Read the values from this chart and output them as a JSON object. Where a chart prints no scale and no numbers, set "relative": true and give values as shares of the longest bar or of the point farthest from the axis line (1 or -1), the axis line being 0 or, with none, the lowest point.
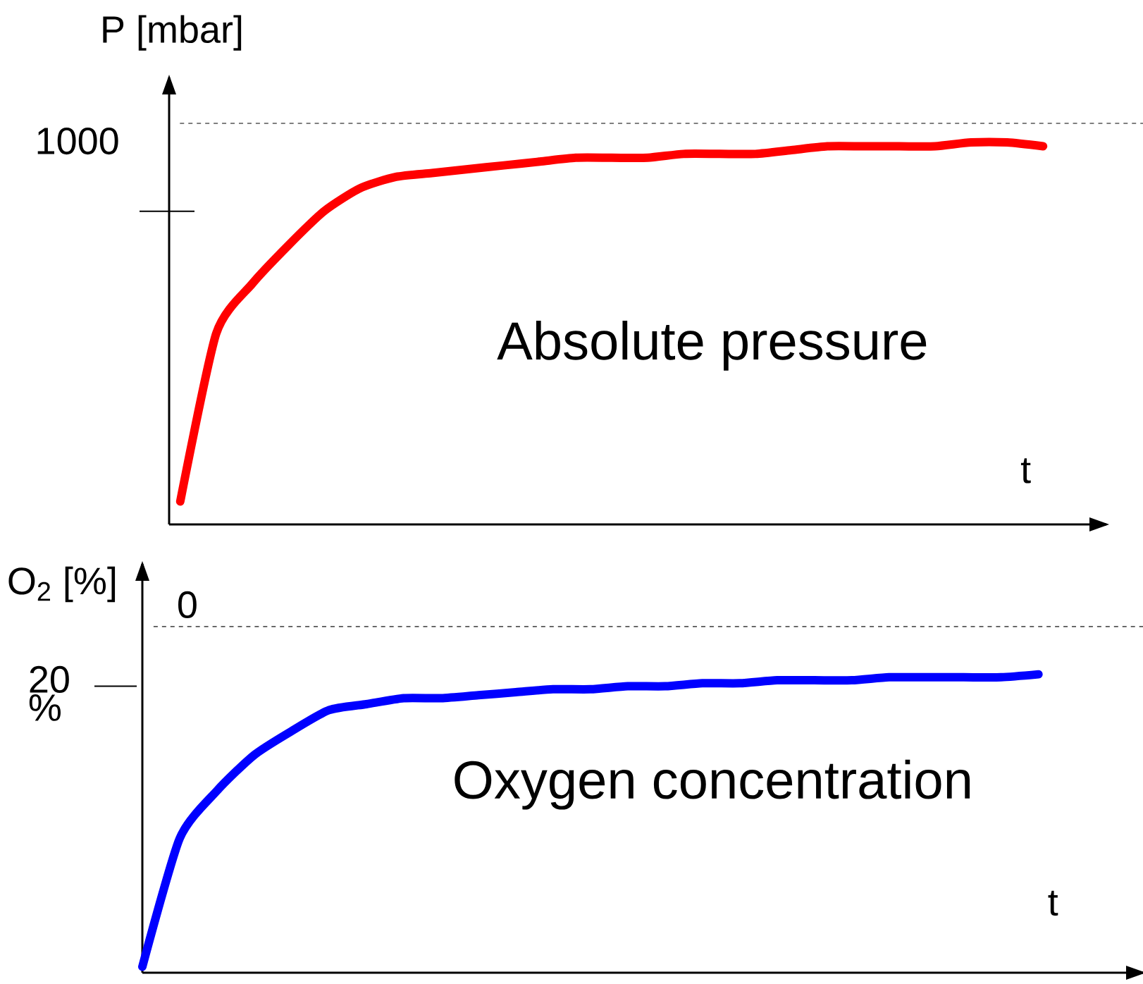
{
  "chart_data": [
    {
      "type": "line",
      "relative": true,
      "ylabel": "P [mbar]",
      "xlabel": "t",
      "categories": [
        null,
        null,
        null,
        null,
        null,
        null,
        null,
        null,
        null,
        null,
        null,
        null,
        null,
        null,
        null,
        null,
        null,
        null,
        null,
        null,
        null,
        null,
        null,
        null,
        null
      ],
      "series": [
        {
          "color": "#ff0000",
          "values": [
            0.06,
            0.5,
            0.63,
            0.73,
            0.82,
            0.88,
            0.91,
            0.92,
            0.93,
            0.94,
            0.95,
            0.96,
            0.96,
            0.96,
            0.97,
            0.97,
            0.97,
            0.98,
            0.99,
            0.99,
            0.99,
            0.99,
            1.0,
            1.0,
            0.99
          ]
        }
      ],
      "ref_lines": [
        {
          "axis": "y",
          "value": 1.05,
          "line_style": "dashed",
          "color": "#555555"
        }
      ],
      "annotations": [
        "Absolute pressure",
        "1000"
      ]
    },
    {
      "type": "line",
      "relative": true,
      "ylabel": "O$_{2}$ [%]",
      "xlabel": "t",
      "categories": [
        null,
        null,
        null,
        null,
        null,
        null,
        null,
        null,
        null,
        null,
        null,
        null,
        null,
        null,
        null,
        null,
        null,
        null,
        null,
        null,
        null,
        null,
        null,
        null,
        null
      ],
      "series": [
        {
          "color": "#0000ff",
          "values": [
            0.02,
            0.45,
            0.61,
            0.73,
            0.81,
            0.88,
            0.9,
            0.92,
            0.92,
            0.93,
            0.94,
            0.95,
            0.95,
            0.96,
            0.96,
            0.97,
            0.97,
            0.98,
            0.98,
            0.98,
            0.99,
            0.99,
            0.99,
            0.99,
            1.0
          ]
        }
      ],
      "ref_lines": [
        {
          "axis": "y",
          "value": 1.16,
          "line_style": "dashed",
          "color": "#555555"
        }
      ],
      "annotations": [
        "Oxygen concentration",
        "0",
        "20 %"
      ]
    }
  ]
}
